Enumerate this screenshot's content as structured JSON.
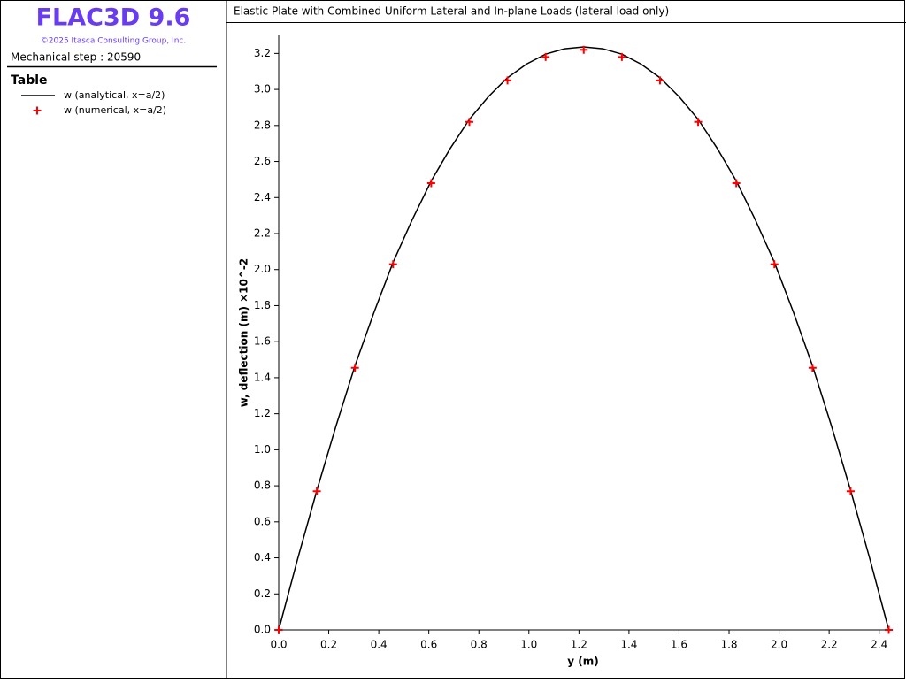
{
  "panel": {
    "product": "FLAC3D 9.6",
    "copyright": "©2025 Itasca Consulting Group, Inc.",
    "step": "Mechanical step : 20590",
    "heading": "Table"
  },
  "chart_data": {
    "type": "line",
    "title": "Elastic Plate with Combined Uniform Lateral and In-plane Loads (lateral load only)",
    "x_label": "y (m)",
    "y_label": "w, deflection (m)  ×10^-2",
    "xlim": [
      0,
      2.44
    ],
    "ylim": [
      0,
      3.3
    ],
    "xticks": [
      {
        "value": 0,
        "label": "0.0"
      },
      0.2,
      0.4,
      0.6,
      0.8,
      {
        "value": 1,
        "label": "1.0"
      },
      1.2,
      1.4,
      1.6,
      1.8,
      {
        "value": 2,
        "label": "2.0"
      },
      2.2,
      2.4
    ],
    "yticks": [
      {
        "value": 0,
        "label": "0.0"
      },
      0.2,
      0.4,
      0.6,
      0.8,
      {
        "value": 1,
        "label": "1.0"
      },
      1.2,
      1.4,
      1.6,
      1.8,
      {
        "value": 2,
        "label": "2.0"
      },
      2.2,
      2.4,
      2.6,
      2.8,
      {
        "value": 3,
        "label": "3.0"
      },
      3.2
    ],
    "grid": false,
    "series": [
      {
        "name": "w (analytical, x=a/2)",
        "color": "#000000",
        "marker": "none",
        "x": [
          0,
          0.0762,
          0.1524,
          0.2286,
          0.3048,
          0.381,
          0.4572,
          0.5334,
          0.6096,
          0.6858,
          0.762,
          0.8382,
          0.9144,
          0.9906,
          1.0668,
          1.143,
          1.2192,
          1.2954,
          1.3716,
          1.4478,
          1.524,
          1.6002,
          1.6764,
          1.7526,
          1.8288,
          1.905,
          1.9812,
          2.0574,
          2.1336,
          2.2098,
          2.286,
          2.3622,
          2.4384
        ],
        "values": [
          0,
          0.397,
          0.774,
          1.13,
          1.466,
          1.763,
          2.04,
          2.276,
          2.492,
          2.673,
          2.834,
          2.96,
          3.065,
          3.141,
          3.196,
          3.226,
          3.236,
          3.226,
          3.196,
          3.141,
          3.065,
          2.96,
          2.834,
          2.673,
          2.492,
          2.276,
          2.04,
          1.763,
          1.466,
          1.13,
          0.774,
          0.397,
          0
        ]
      },
      {
        "name": "w (numerical, x=a/2)",
        "color": "#ff0000",
        "marker": "+",
        "x": [
          0,
          0.1524,
          0.3048,
          0.4572,
          0.6096,
          0.762,
          0.9144,
          1.0668,
          1.2192,
          1.3716,
          1.524,
          1.6764,
          1.8288,
          1.9812,
          2.1336,
          2.286,
          2.4384
        ],
        "values": [
          0,
          0.77,
          1.455,
          2.03,
          2.48,
          2.82,
          3.05,
          3.18,
          3.22,
          3.18,
          3.05,
          2.82,
          2.48,
          2.03,
          1.455,
          0.77,
          0
        ]
      }
    ]
  }
}
